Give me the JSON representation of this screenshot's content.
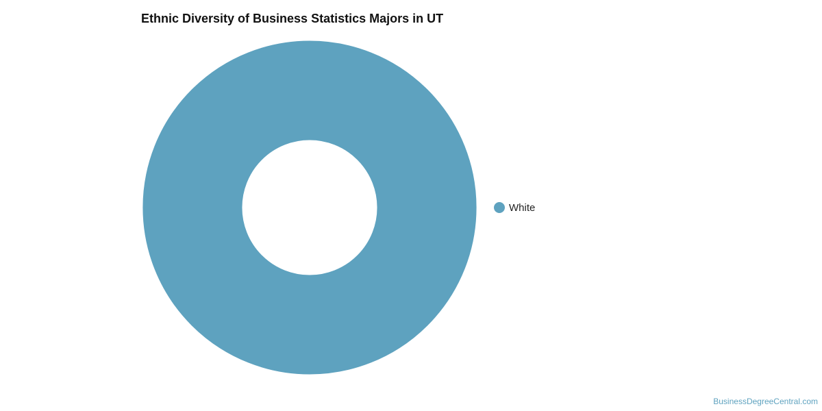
{
  "chart_data": {
    "type": "donut",
    "title": "Ethnic Diversity of Business Statistics Majors in UT",
    "categories": [
      "White"
    ],
    "values": [
      100
    ],
    "colors": [
      "#5ea2bf"
    ],
    "legend": "right",
    "watermark": "BusinessDegreeCentral.com"
  }
}
